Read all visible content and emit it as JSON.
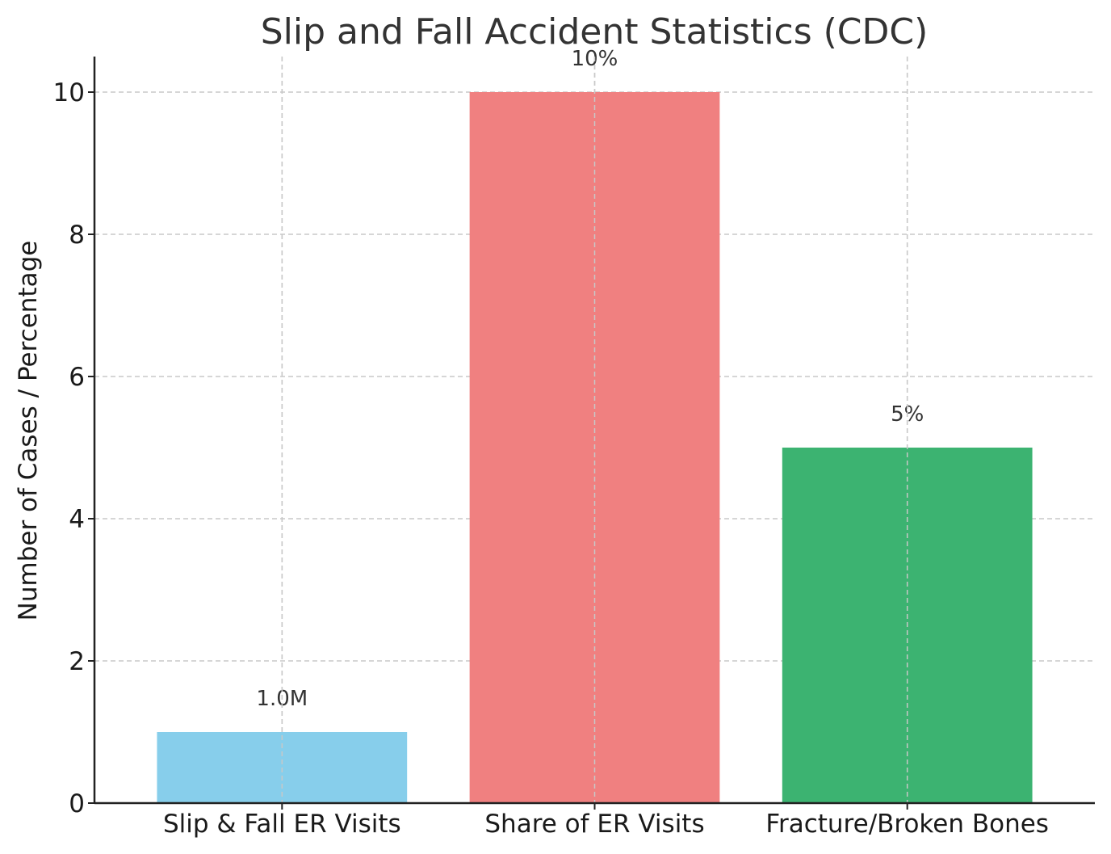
{
  "chart_data": {
    "type": "bar",
    "title": "Slip and Fall Accident Statistics (CDC)",
    "xlabel": "",
    "ylabel": "Number of Cases / Percentage",
    "categories": [
      "Slip & Fall ER Visits",
      "Share of ER Visits",
      "Fracture/Broken Bones"
    ],
    "values": [
      1.0,
      10,
      5
    ],
    "data_labels": [
      "1.0M",
      "10%",
      "5%"
    ],
    "colors": [
      "#87ceeb",
      "#f08080",
      "#3cb371"
    ],
    "ylim": [
      0,
      10.5
    ],
    "yticks": [
      0,
      2,
      4,
      6,
      8,
      10
    ],
    "grid": true
  }
}
